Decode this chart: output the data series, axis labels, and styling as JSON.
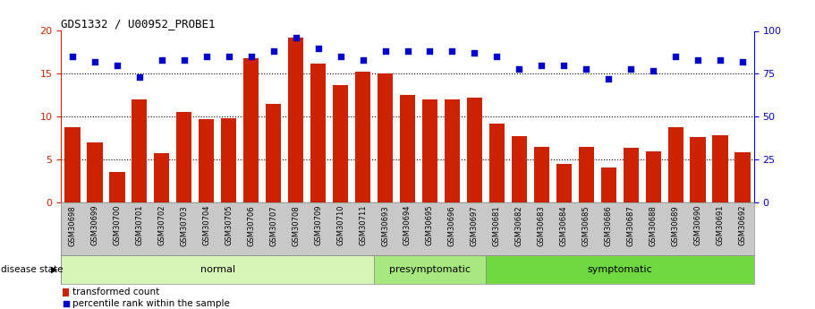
{
  "title": "GDS1332 / U00952_PROBE1",
  "samples": [
    "GSM30698",
    "GSM30699",
    "GSM30700",
    "GSM30701",
    "GSM30702",
    "GSM30703",
    "GSM30704",
    "GSM30705",
    "GSM30706",
    "GSM30707",
    "GSM30708",
    "GSM30709",
    "GSM30710",
    "GSM30711",
    "GSM30693",
    "GSM30694",
    "GSM30695",
    "GSM30696",
    "GSM30697",
    "GSM30681",
    "GSM30682",
    "GSM30683",
    "GSM30684",
    "GSM30685",
    "GSM30686",
    "GSM30687",
    "GSM30688",
    "GSM30689",
    "GSM30690",
    "GSM30691",
    "GSM30692"
  ],
  "bar_values": [
    8.8,
    7.0,
    3.5,
    12.0,
    5.7,
    10.5,
    9.7,
    9.8,
    16.8,
    11.5,
    19.2,
    16.2,
    13.7,
    15.2,
    15.0,
    12.5,
    12.0,
    12.0,
    12.2,
    9.2,
    7.7,
    6.5,
    4.5,
    6.5,
    4.1,
    6.4,
    6.0,
    8.8,
    7.6,
    7.8,
    5.8
  ],
  "dot_values": [
    85,
    82,
    80,
    73,
    83,
    83,
    85,
    85,
    85,
    88,
    96,
    90,
    85,
    83,
    88,
    88,
    88,
    88,
    87,
    85,
    78,
    80,
    80,
    78,
    72,
    78,
    77,
    85,
    83,
    83,
    82
  ],
  "groups": [
    {
      "name": "normal",
      "start": 0,
      "end": 13,
      "color": "#d8f5b8"
    },
    {
      "name": "presymptomatic",
      "start": 14,
      "end": 18,
      "color": "#a8e880"
    },
    {
      "name": "symptomatic",
      "start": 19,
      "end": 30,
      "color": "#70d840"
    }
  ],
  "bar_color": "#cc2200",
  "dot_color": "#0000cc",
  "ylim_left": [
    0,
    20
  ],
  "ylim_right": [
    0,
    100
  ],
  "yticks_left": [
    0,
    5,
    10,
    15,
    20
  ],
  "yticks_right": [
    0,
    25,
    50,
    75,
    100
  ],
  "grid_lines": [
    5,
    10,
    15
  ],
  "disease_state_label": "disease state",
  "legend_bar": "transformed count",
  "legend_dot": "percentile rank within the sample",
  "tick_bg_color": "#c8c8c8",
  "tick_border_color": "#888888"
}
